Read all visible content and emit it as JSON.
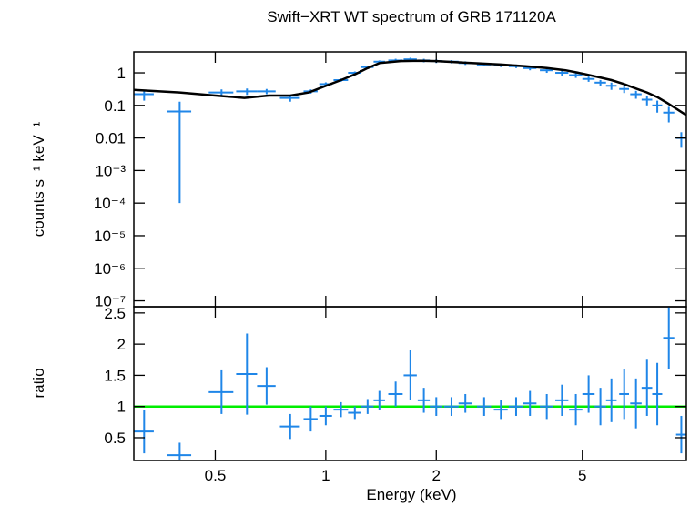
{
  "chart_data": [
    {
      "type": "scatter",
      "title": "Swift−XRT WT spectrum of GRB 171120A",
      "ylabel": "counts s⁻¹ keV⁻¹",
      "xlog": true,
      "ylog": true,
      "xlim": [
        0.3,
        9.6
      ],
      "xticks": [
        0.5,
        1,
        2,
        5
      ],
      "ylim": [
        6.6e-08,
        4.4
      ],
      "yticks": [
        {
          "value": 1e-07,
          "label": "10⁻⁷"
        },
        {
          "value": 1e-06,
          "label": "10⁻⁶"
        },
        {
          "value": 1e-05,
          "label": "10⁻⁵"
        },
        {
          "value": 0.0001,
          "label": "10⁻⁴"
        },
        {
          "value": 0.001,
          "label": "10⁻³"
        },
        0.01,
        0.1,
        1
      ],
      "series": [
        {
          "kind": "errorbar",
          "color": "#1f86e8",
          "x": [
            0.32,
            0.4,
            0.52,
            0.61,
            0.69,
            0.8,
            0.91,
            1.0,
            1.1,
            1.2,
            1.3,
            1.4,
            1.55,
            1.7,
            1.85,
            2.0,
            2.2,
            2.4,
            2.7,
            3.0,
            3.3,
            3.6,
            4.0,
            4.4,
            4.8,
            5.2,
            5.6,
            6.0,
            6.5,
            7.0,
            7.5,
            8.0,
            8.6,
            9.3
          ],
          "xerr": [
            0.02,
            0.03,
            0.04,
            0.04,
            0.04,
            0.05,
            0.04,
            0.04,
            0.05,
            0.05,
            0.05,
            0.05,
            0.07,
            0.07,
            0.07,
            0.08,
            0.1,
            0.1,
            0.12,
            0.13,
            0.15,
            0.15,
            0.17,
            0.18,
            0.2,
            0.2,
            0.2,
            0.2,
            0.2,
            0.25,
            0.25,
            0.25,
            0.3,
            0.3
          ],
          "values": [
            0.22,
            0.065,
            0.25,
            0.27,
            0.27,
            0.17,
            0.27,
            0.45,
            0.6,
            1.0,
            1.5,
            2.2,
            2.4,
            2.6,
            2.4,
            2.3,
            2.2,
            2.0,
            1.8,
            1.7,
            1.6,
            1.4,
            1.2,
            1.0,
            0.85,
            0.65,
            0.5,
            0.4,
            0.32,
            0.22,
            0.15,
            0.1,
            0.06,
            0.01
          ],
          "yerr": [
            0.08,
            0.0649,
            0.06,
            0.06,
            0.05,
            0.04,
            0.04,
            0.06,
            0.07,
            0.1,
            0.15,
            0.2,
            0.3,
            0.3,
            0.3,
            0.3,
            0.25,
            0.25,
            0.2,
            0.2,
            0.2,
            0.2,
            0.2,
            0.2,
            0.15,
            0.12,
            0.1,
            0.1,
            0.08,
            0.06,
            0.05,
            0.04,
            0.03,
            0.005
          ]
        },
        {
          "kind": "line",
          "color": "#000000",
          "x": [
            0.3,
            0.4,
            0.5,
            0.6,
            0.7,
            0.8,
            0.9,
            1.0,
            1.1,
            1.2,
            1.3,
            1.4,
            1.6,
            1.8,
            2.0,
            2.5,
            3.0,
            3.5,
            4.0,
            4.5,
            5.0,
            5.5,
            6.0,
            6.5,
            7.0,
            7.5,
            8.0,
            8.5,
            9.0,
            9.6
          ],
          "values": [
            0.3,
            0.25,
            0.2,
            0.17,
            0.2,
            0.2,
            0.25,
            0.4,
            0.6,
            0.9,
            1.4,
            2.0,
            2.3,
            2.35,
            2.3,
            2.0,
            1.8,
            1.6,
            1.4,
            1.2,
            0.95,
            0.75,
            0.6,
            0.45,
            0.33,
            0.25,
            0.18,
            0.12,
            0.08,
            0.05
          ]
        }
      ]
    },
    {
      "type": "scatter",
      "xlabel": "Energy (keV)",
      "ylabel": "ratio",
      "xlog": true,
      "ylog": false,
      "xlim": [
        0.3,
        9.6
      ],
      "xticks": [
        0.5,
        1,
        2,
        5
      ],
      "ylim": [
        0.135,
        2.6
      ],
      "yticks": [
        0.5,
        1,
        1.5,
        2,
        2.5
      ],
      "hline": {
        "value": 1,
        "color": "#00ee00"
      },
      "series": [
        {
          "kind": "errorbar",
          "color": "#1f86e8",
          "x": [
            0.32,
            0.4,
            0.52,
            0.61,
            0.69,
            0.8,
            0.91,
            1.0,
            1.1,
            1.2,
            1.3,
            1.4,
            1.55,
            1.7,
            1.85,
            2.0,
            2.2,
            2.4,
            2.7,
            3.0,
            3.3,
            3.6,
            4.0,
            4.4,
            4.8,
            5.2,
            5.6,
            6.0,
            6.5,
            7.0,
            7.5,
            8.0,
            8.6,
            9.3
          ],
          "xerr": [
            0.02,
            0.03,
            0.04,
            0.04,
            0.04,
            0.05,
            0.04,
            0.04,
            0.05,
            0.05,
            0.05,
            0.05,
            0.07,
            0.07,
            0.07,
            0.08,
            0.1,
            0.1,
            0.12,
            0.13,
            0.15,
            0.15,
            0.17,
            0.18,
            0.2,
            0.2,
            0.2,
            0.2,
            0.2,
            0.25,
            0.25,
            0.25,
            0.3,
            0.3
          ],
          "values": [
            0.6,
            0.22,
            1.23,
            1.52,
            1.33,
            0.68,
            0.8,
            0.85,
            0.95,
            0.9,
            1.0,
            1.1,
            1.2,
            1.5,
            1.1,
            1.0,
            1.0,
            1.05,
            1.0,
            0.95,
            1.0,
            1.05,
            1.0,
            1.1,
            0.95,
            1.2,
            1.0,
            1.1,
            1.2,
            1.05,
            1.3,
            1.2,
            2.1,
            0.55
          ],
          "yerr": [
            0.35,
            0.2,
            0.35,
            0.65,
            0.3,
            0.2,
            0.2,
            0.15,
            0.12,
            0.1,
            0.12,
            0.15,
            0.2,
            0.4,
            0.2,
            0.15,
            0.15,
            0.15,
            0.15,
            0.15,
            0.15,
            0.2,
            0.2,
            0.25,
            0.25,
            0.3,
            0.3,
            0.35,
            0.4,
            0.4,
            0.45,
            0.5,
            0.5,
            0.3
          ]
        }
      ]
    }
  ]
}
